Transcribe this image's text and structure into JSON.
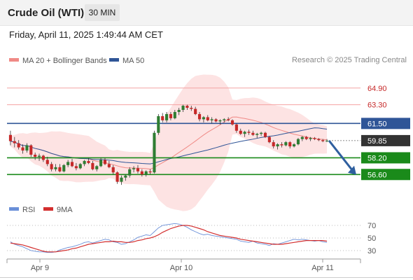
{
  "header": {
    "title": "Crude Oil (WTI)",
    "timeframe": "30 MIN"
  },
  "timestamp": "Friday, April 11, 2025 1:49:44 AM CET",
  "credit": "Research © 2025 Trading Central",
  "legend": [
    {
      "label": "MA 20 + Bollinger Bands",
      "color": "#f08a86"
    },
    {
      "label": "MA 50",
      "color": "#2f5597"
    }
  ],
  "colors": {
    "bull": "#2e7d32",
    "bear": "#c62828",
    "support": "#1a8a1a",
    "resistance_light": "#f4a3a3",
    "ma50": "#2f5597",
    "ma20": "#f08a86",
    "band_fill": "#fde3e3",
    "price_tag": "#333333",
    "arrow": "#2f5f9f"
  },
  "chart_data": [
    {
      "type": "candlestick",
      "ylim": [
        54.4,
        66.9
      ],
      "x_ticks": [
        "Apr 9",
        "Apr 10",
        "Apr 11"
      ],
      "levels": [
        {
          "value": 64.9,
          "label": "64.90",
          "kind": "resistance"
        },
        {
          "value": 63.3,
          "label": "63.30",
          "kind": "resistance"
        },
        {
          "value": 61.5,
          "label": "61.50",
          "kind": "pivot"
        },
        {
          "value": 59.85,
          "label": "59.85",
          "kind": "last"
        },
        {
          "value": 58.2,
          "label": "58.20",
          "kind": "support"
        },
        {
          "value": 56.6,
          "label": "56.60",
          "kind": "support"
        }
      ],
      "ohlc": [
        [
          60.4,
          60.8,
          59.4,
          59.8
        ],
        [
          59.8,
          60.2,
          59.2,
          59.6
        ],
        [
          59.6,
          59.9,
          59.0,
          59.2
        ],
        [
          59.2,
          59.5,
          58.6,
          58.9
        ],
        [
          58.9,
          59.6,
          58.7,
          59.4
        ],
        [
          59.4,
          59.5,
          58.3,
          58.5
        ],
        [
          58.5,
          58.7,
          58.0,
          58.3
        ],
        [
          58.3,
          58.6,
          57.9,
          58.4
        ],
        [
          58.4,
          58.5,
          57.8,
          58.0
        ],
        [
          58.0,
          58.3,
          57.4,
          57.6
        ],
        [
          57.6,
          57.8,
          56.9,
          57.1
        ],
        [
          57.1,
          57.6,
          56.9,
          57.3
        ],
        [
          57.3,
          57.6,
          56.8,
          56.9
        ],
        [
          56.9,
          57.6,
          56.8,
          57.5
        ],
        [
          57.5,
          58.0,
          57.3,
          57.8
        ],
        [
          57.8,
          58.1,
          57.3,
          57.4
        ],
        [
          57.4,
          57.7,
          57.0,
          57.2
        ],
        [
          57.2,
          57.7,
          57.1,
          57.6
        ],
        [
          57.6,
          58.0,
          57.4,
          57.9
        ],
        [
          57.9,
          58.2,
          57.6,
          57.7
        ],
        [
          57.7,
          57.9,
          57.0,
          57.1
        ],
        [
          57.1,
          57.5,
          56.9,
          57.4
        ],
        [
          57.4,
          58.2,
          57.3,
          58.0
        ],
        [
          58.0,
          58.2,
          57.5,
          57.6
        ],
        [
          57.6,
          57.9,
          57.2,
          57.3
        ],
        [
          57.3,
          57.5,
          56.6,
          56.8
        ],
        [
          56.8,
          56.9,
          55.7,
          55.9
        ],
        [
          55.9,
          56.5,
          55.6,
          56.3
        ],
        [
          56.3,
          56.6,
          56.0,
          56.5
        ],
        [
          56.5,
          57.3,
          56.3,
          57.1
        ],
        [
          57.1,
          57.4,
          56.8,
          57.2
        ],
        [
          57.2,
          57.5,
          56.7,
          56.9
        ],
        [
          56.9,
          57.1,
          56.4,
          56.6
        ],
        [
          56.6,
          57.0,
          56.4,
          56.9
        ],
        [
          56.9,
          57.1,
          56.6,
          56.8
        ],
        [
          56.8,
          60.8,
          56.7,
          60.6
        ],
        [
          60.6,
          62.4,
          60.4,
          62.2
        ],
        [
          62.2,
          62.5,
          61.6,
          61.8
        ],
        [
          61.8,
          62.6,
          61.6,
          62.4
        ],
        [
          62.4,
          62.6,
          61.8,
          62.0
        ],
        [
          62.0,
          62.8,
          61.9,
          62.6
        ],
        [
          62.6,
          63.0,
          62.3,
          62.8
        ],
        [
          62.8,
          63.3,
          62.6,
          63.2
        ],
        [
          63.2,
          63.3,
          62.8,
          63.0
        ],
        [
          63.0,
          63.2,
          62.7,
          62.9
        ],
        [
          62.9,
          63.1,
          62.3,
          62.4
        ],
        [
          62.4,
          62.6,
          61.7,
          61.9
        ],
        [
          61.9,
          62.2,
          61.6,
          62.1
        ],
        [
          62.1,
          62.3,
          61.7,
          61.8
        ],
        [
          61.8,
          62.1,
          61.5,
          61.9
        ],
        [
          61.9,
          62.0,
          61.6,
          61.7
        ],
        [
          61.7,
          61.9,
          61.4,
          61.8
        ],
        [
          61.8,
          62.0,
          61.6,
          61.9
        ],
        [
          61.9,
          62.1,
          61.7,
          61.8
        ],
        [
          61.8,
          61.9,
          61.3,
          61.4
        ],
        [
          61.4,
          61.5,
          60.6,
          60.8
        ],
        [
          60.8,
          61.0,
          60.4,
          60.5
        ],
        [
          60.5,
          60.8,
          60.2,
          60.7
        ],
        [
          60.7,
          60.9,
          60.4,
          60.6
        ],
        [
          60.6,
          60.8,
          60.3,
          60.4
        ],
        [
          60.4,
          60.6,
          60.1,
          60.5
        ],
        [
          60.5,
          60.7,
          60.3,
          60.6
        ],
        [
          60.6,
          60.7,
          60.1,
          60.2
        ],
        [
          60.2,
          60.3,
          59.6,
          59.7
        ],
        [
          59.7,
          59.9,
          59.1,
          59.3
        ],
        [
          59.3,
          59.6,
          59.0,
          59.5
        ],
        [
          59.5,
          59.7,
          59.2,
          59.4
        ],
        [
          59.4,
          59.8,
          59.3,
          59.7
        ],
        [
          59.7,
          59.8,
          59.1,
          59.3
        ],
        [
          59.3,
          59.6,
          59.2,
          59.5
        ],
        [
          59.5,
          60.1,
          59.4,
          60.0
        ],
        [
          60.0,
          60.3,
          59.8,
          60.2
        ],
        [
          60.2,
          60.3,
          59.9,
          60.0
        ],
        [
          60.0,
          60.2,
          59.8,
          60.1
        ],
        [
          60.1,
          60.2,
          59.9,
          60.0
        ],
        [
          60.0,
          60.1,
          59.8,
          59.9
        ],
        [
          59.9,
          60.0,
          59.7,
          59.8
        ],
        [
          59.8,
          60.0,
          59.7,
          59.85
        ]
      ],
      "projection": {
        "from": 59.85,
        "to": 56.7
      }
    },
    {
      "type": "line",
      "name": "RSI",
      "ylim": [
        20,
        80
      ],
      "y_ticks": [
        "70",
        "50",
        "30"
      ],
      "series": [
        {
          "name": "RSI",
          "color": "#6a8fd8",
          "values": [
            44,
            40,
            38,
            36,
            33,
            30,
            29,
            28,
            28,
            27,
            27,
            28,
            31,
            33,
            35,
            36,
            38,
            40,
            43,
            44,
            42,
            44,
            46,
            48,
            47,
            44,
            43,
            40,
            41,
            44,
            47,
            51,
            53,
            55,
            54,
            60,
            66,
            70,
            71,
            72,
            73,
            72,
            70,
            67,
            63,
            60,
            57,
            55,
            56,
            54,
            53,
            52,
            51,
            50,
            49,
            48,
            45,
            44,
            43,
            45,
            42,
            41,
            40,
            38,
            41,
            40,
            42,
            44,
            46,
            48,
            47,
            48,
            47,
            46,
            45,
            46,
            44,
            43
          ]
        },
        {
          "name": "9MA",
          "color": "#d32f2f",
          "values": [
            42,
            41,
            40,
            39,
            37,
            35,
            33,
            31,
            29,
            28,
            28,
            28,
            29,
            30,
            31,
            33,
            34,
            36,
            38,
            40,
            41,
            42,
            43,
            44,
            44,
            45,
            44,
            44,
            43,
            43,
            44,
            46,
            47,
            49,
            50,
            52,
            55,
            59,
            62,
            65,
            67,
            69,
            70,
            70,
            69,
            67,
            65,
            63,
            60,
            58,
            56,
            54,
            53,
            52,
            51,
            50,
            48,
            47,
            46,
            45,
            44,
            43,
            42,
            41,
            40,
            40,
            40,
            41,
            42,
            43,
            44,
            45,
            46,
            46,
            46,
            46,
            46,
            45
          ]
        }
      ]
    }
  ],
  "rsi_legend": [
    {
      "label": "RSI",
      "color": "#6a8fd8"
    },
    {
      "label": "9MA",
      "color": "#d32f2f"
    }
  ]
}
